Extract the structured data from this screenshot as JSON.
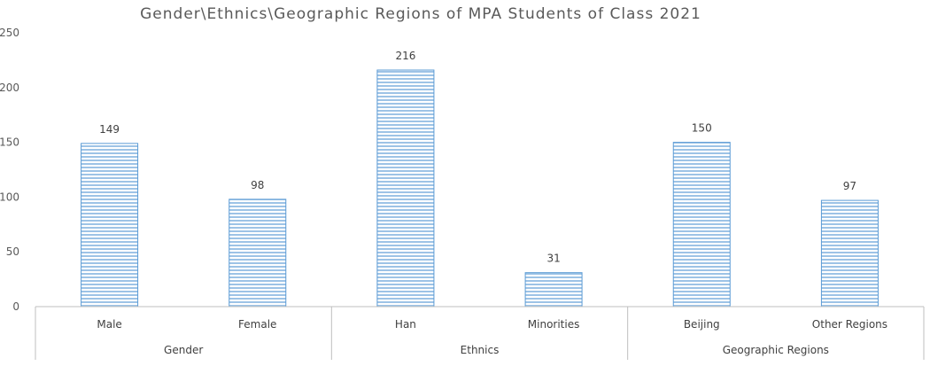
{
  "chart_data": {
    "type": "bar",
    "title": "Gender\\Ethnics\\Geographic Regions of MPA Students of Class 2021",
    "categories": [
      "Male",
      "Female",
      "Han",
      "Minorities",
      "Beijing",
      "Other Regions"
    ],
    "groups": [
      {
        "label": "Gender",
        "categories": [
          "Male",
          "Female"
        ]
      },
      {
        "label": "Ethnics",
        "categories": [
          "Han",
          "Minorities"
        ]
      },
      {
        "label": "Geographic Regions",
        "categories": [
          "Beijing",
          "Other Regions"
        ]
      }
    ],
    "values": [
      149,
      98,
      216,
      31,
      150,
      97
    ],
    "yticks": [
      "0",
      "50",
      "100",
      "150",
      "200",
      "250"
    ],
    "ylim": [
      0,
      250
    ],
    "xlabel": "",
    "ylabel": "",
    "grid": false,
    "bar_color": "#5b9bd5",
    "bar_stripe_color": "#ffffff"
  }
}
